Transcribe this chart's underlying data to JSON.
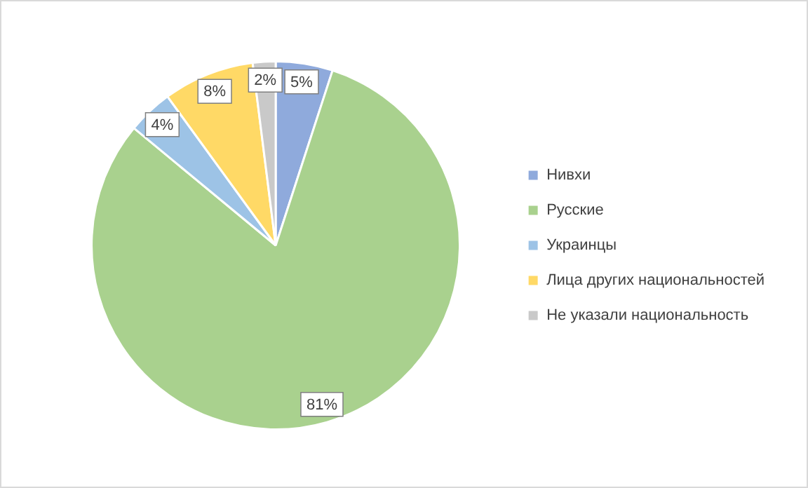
{
  "chart_data": {
    "type": "pie",
    "categories": [
      "Нивхи",
      "Русские",
      "Украинцы",
      "Лица других национальностей",
      "Не указали национальность"
    ],
    "values": [
      5,
      81,
      4,
      8,
      2
    ],
    "value_labels": [
      "5%",
      "81%",
      "4%",
      "8%",
      "2%"
    ],
    "colors": [
      "#8faadc",
      "#a9d18e",
      "#9dc3e6",
      "#ffd966",
      "#c9c9c9"
    ],
    "legend": "right"
  }
}
